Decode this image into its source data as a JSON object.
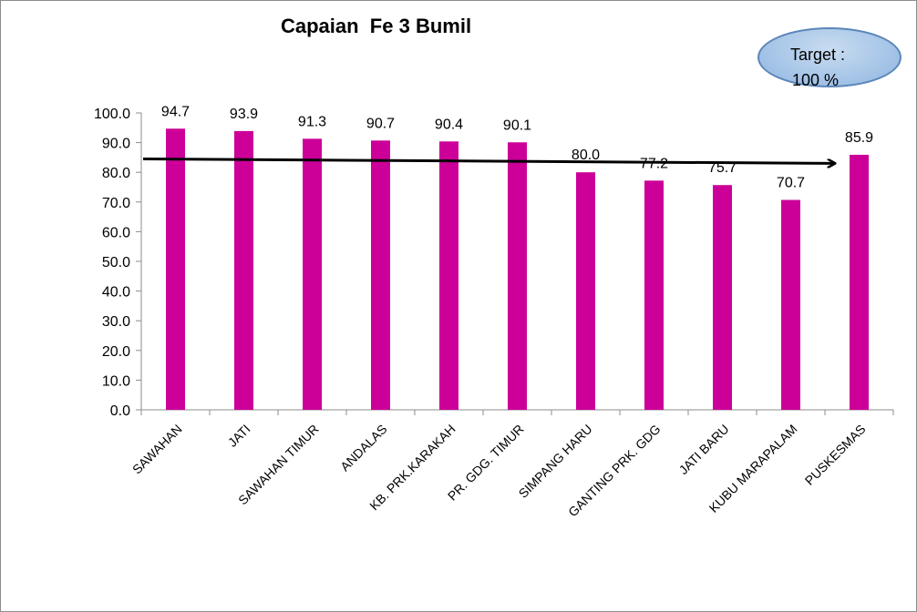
{
  "chart_data": {
    "type": "bar",
    "title": "Capaian  Fe 3 Bumil",
    "categories": [
      "SAWAHAN",
      "JATI",
      "SAWAHAN TIMUR",
      "ANDALAS",
      "KB. PRK.KARAKAH",
      "PR. GDG. TIMUR",
      "SIMPANG HARU",
      "GANTING PRK. GDG",
      "JATI BARU",
      "KUBU MARAPALAM",
      "PUSKESMAS"
    ],
    "values": [
      94.7,
      93.9,
      91.3,
      90.7,
      90.4,
      90.1,
      80.0,
      77.2,
      75.7,
      70.7,
      85.9
    ],
    "data_labels": [
      "94.7",
      "93.9",
      "91.3",
      "90.7",
      "90.4",
      "90.1",
      "80.0",
      "77.2",
      "75.7",
      "70.7",
      "85.9"
    ],
    "ylim": [
      0,
      100
    ],
    "y_ticks": [
      "0.0",
      "10.0",
      "20.0",
      "30.0",
      "40.0",
      "50.0",
      "60.0",
      "70.0",
      "80.0",
      "90.0",
      "100.0"
    ],
    "xlabel": "",
    "ylabel": "",
    "grid": false,
    "bar_color": "#cc0099",
    "annotation": {
      "target_line1": "Target :",
      "target_line2": "100 %"
    },
    "trend_arrow": {
      "from": {
        "category": "SAWAHAN",
        "value": 84.5
      },
      "to": {
        "category": "PUSKESMAS",
        "value": 83.0
      }
    }
  }
}
